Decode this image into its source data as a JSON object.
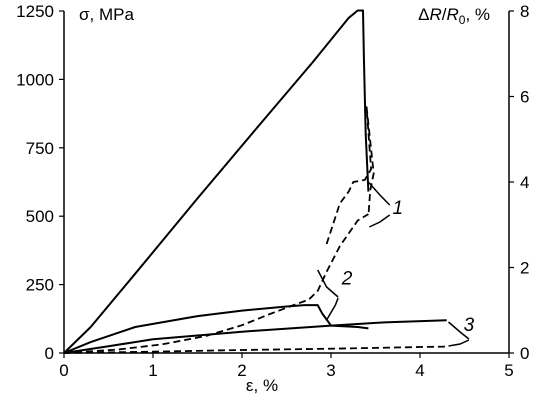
{
  "chart_data": {
    "type": "line",
    "title": "",
    "xlabel": "ε, %",
    "ylabel_left": "σ, MPa",
    "ylabel_right": "ΔR/R0, %",
    "xlim": [
      0,
      5
    ],
    "ylim_left": [
      0,
      1250
    ],
    "ylim_right": [
      0,
      8
    ],
    "x_ticks": [
      "0",
      "1",
      "2",
      "3",
      "4",
      "5"
    ],
    "y_left_ticks": [
      "0",
      "250",
      "500",
      "750",
      "1000",
      "1250"
    ],
    "y_right_ticks": [
      "0",
      "2",
      "4",
      "6",
      "8"
    ],
    "grid": false,
    "series": [
      {
        "id": "stress-1",
        "axis": "left",
        "style": "solid",
        "x": [
          0,
          0.3,
          0.8,
          1.5,
          2.2,
          2.8,
          3.2,
          3.3,
          3.36,
          3.37,
          3.39,
          3.42
        ],
        "y": [
          0,
          95,
          290,
          565,
          835,
          1065,
          1225,
          1252,
          1252,
          1080,
          800,
          590
        ]
      },
      {
        "id": "resistance-1",
        "axis": "right",
        "style": "dashed",
        "x": [
          2.95,
          3.1,
          3.2,
          3.25,
          3.38,
          3.45,
          3.4,
          3.48,
          3.44,
          3.42
        ],
        "y": [
          2.55,
          3.5,
          3.78,
          4.0,
          4.05,
          4.3,
          5.75,
          4.2,
          3.8,
          3.2
        ]
      },
      {
        "id": "stress-2",
        "axis": "left",
        "style": "solid",
        "x": [
          0,
          0.3,
          0.8,
          1.5,
          2.0,
          2.5,
          2.7,
          2.85,
          2.9,
          3.0,
          3.3,
          3.42
        ],
        "y": [
          0,
          40,
          95,
          135,
          155,
          170,
          175,
          175,
          145,
          100,
          95,
          90
        ]
      },
      {
        "id": "resistance-2",
        "axis": "right",
        "style": "dashed",
        "x": [
          0,
          0.6,
          1.1,
          1.6,
          2.0,
          2.3,
          2.55,
          2.75,
          2.85,
          2.95,
          3.1,
          3.3,
          3.42
        ],
        "y": [
          0,
          0.08,
          0.2,
          0.4,
          0.65,
          0.9,
          1.1,
          1.25,
          1.45,
          1.9,
          2.5,
          3.1,
          3.25
        ]
      },
      {
        "id": "stress-3",
        "axis": "left",
        "style": "solid",
        "x": [
          0,
          0.5,
          1.0,
          2.0,
          3.0,
          3.6,
          4.3
        ],
        "y": [
          0,
          25,
          50,
          78,
          100,
          112,
          120
        ]
      },
      {
        "id": "resistance-3",
        "axis": "right",
        "style": "dashed",
        "x": [
          0,
          1.0,
          2.0,
          3.0,
          3.5,
          4.0,
          4.3
        ],
        "y": [
          0,
          0.03,
          0.07,
          0.1,
          0.12,
          0.14,
          0.15
        ]
      }
    ],
    "annotations": [
      {
        "text": "1",
        "x": 3.75,
        "y_right": 3.25
      },
      {
        "text": "2",
        "x": 3.18,
        "y_left": 250
      },
      {
        "text": "3",
        "x": 4.55,
        "y_left": 80
      }
    ]
  }
}
